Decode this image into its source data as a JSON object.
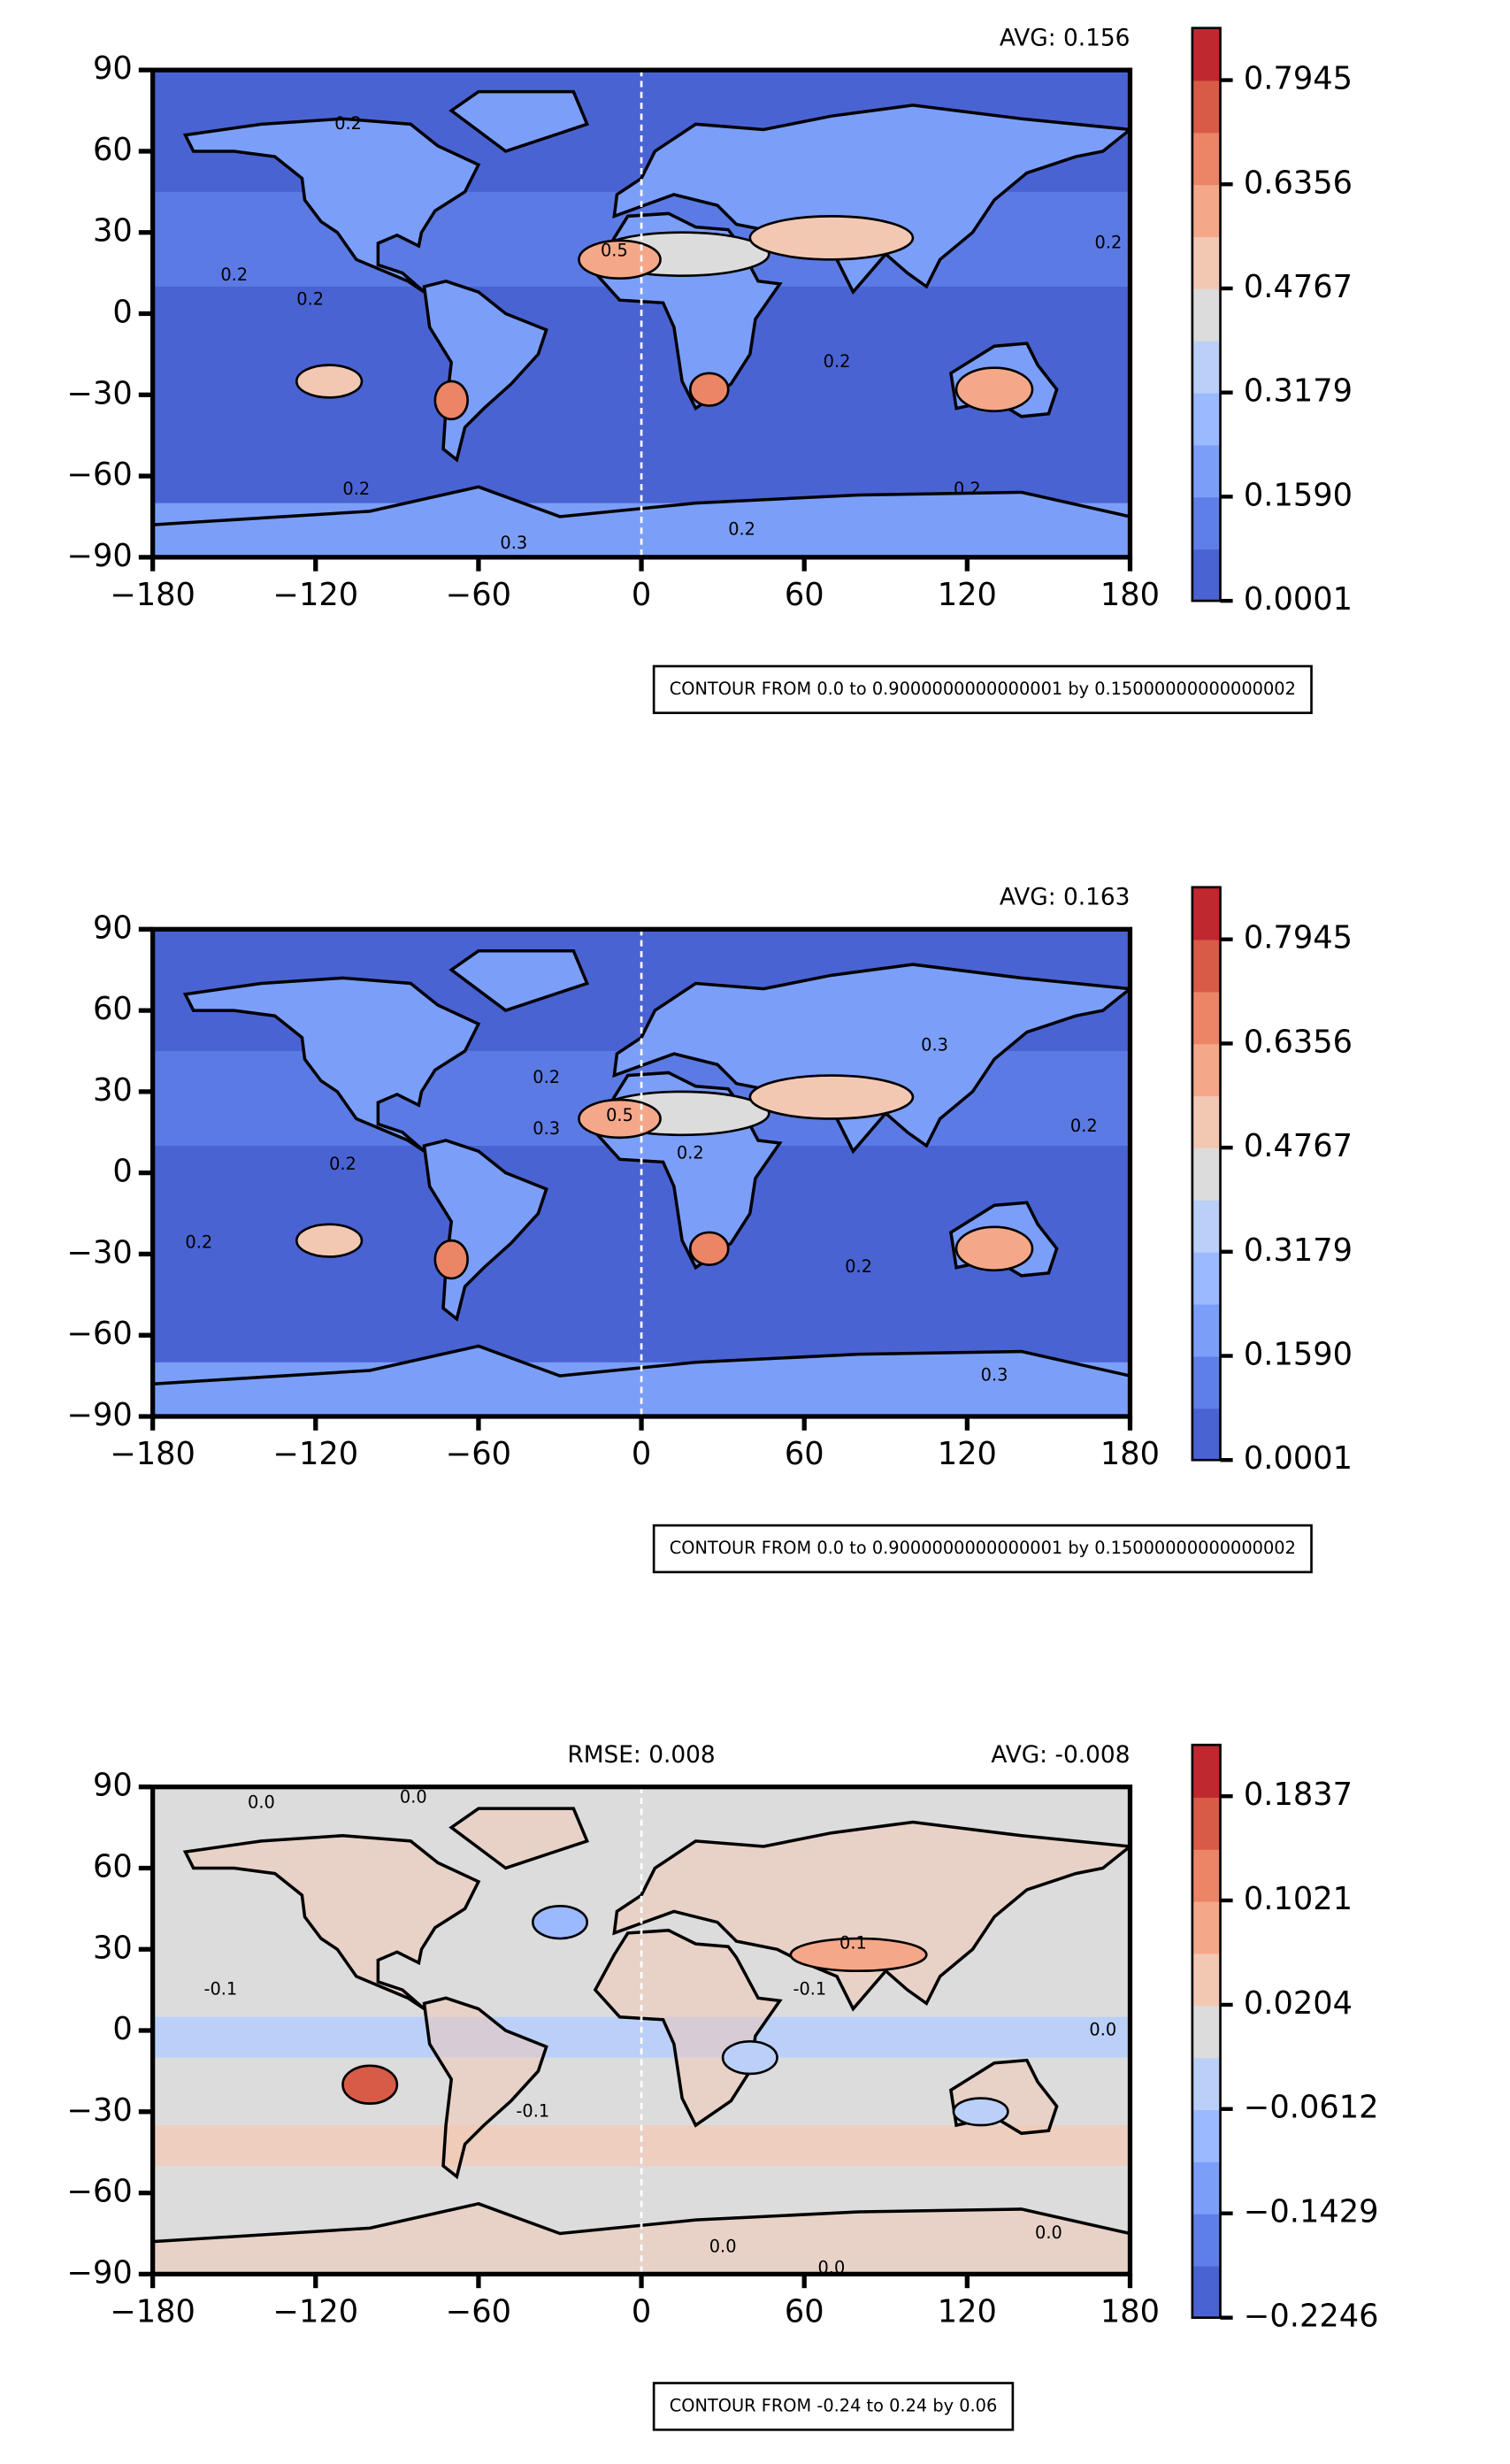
{
  "chart_data": [
    {
      "type": "contour",
      "title_right": "AVG: 0.156",
      "xlim": [
        -180,
        180
      ],
      "ylim": [
        -90,
        90
      ],
      "xticks": [
        {
          "value": -180,
          "label": "−180"
        },
        {
          "value": -120,
          "label": "−120"
        },
        {
          "value": -60,
          "label": "−60"
        },
        0,
        60,
        120,
        180
      ],
      "yticks": [
        {
          "value": -90,
          "label": "−90"
        },
        {
          "value": -60,
          "label": "−60"
        },
        {
          "value": -30,
          "label": "−30"
        },
        0,
        30,
        60,
        90
      ],
      "colorbar": {
        "clim": [
          0.0001,
          0.874
        ],
        "ticks": [
          0.0001,
          {
            "value": 0.159,
            "label": "0.1590"
          },
          0.3179,
          0.4767,
          0.6356,
          0.7945
        ],
        "colors": [
          "#4a63d3",
          "#5f7fe8",
          "#7b9ff9",
          "#9bb9fe",
          "#bad0f8",
          "#dcdcdc",
          "#f3c8b2",
          "#f5a889",
          "#ec8466",
          "#d85b48",
          "#c0282f"
        ]
      },
      "background": "#4a63d3",
      "contour_labels": [
        {
          "x": -150,
          "y": 14,
          "label": "0.2"
        },
        {
          "x": -122,
          "y": 5,
          "label": "0.2"
        },
        {
          "x": -108,
          "y": 70,
          "label": "0.2"
        },
        {
          "x": -105,
          "y": -65,
          "label": "0.2"
        },
        {
          "x": -47,
          "y": -85,
          "label": "0.3"
        },
        {
          "x": 37,
          "y": -80,
          "label": "0.2"
        },
        {
          "x": 72,
          "y": -18,
          "label": "0.2"
        },
        {
          "x": 120,
          "y": -65,
          "label": "0.2"
        },
        {
          "x": 172,
          "y": 26,
          "label": "0.2"
        },
        {
          "x": -10,
          "y": 23,
          "label": "0.5"
        }
      ],
      "note": "CONTOUR FROM 0.0 to 0.9000000000000001 by 0.15000000000000002"
    },
    {
      "type": "contour",
      "title_right": "AVG: 0.163",
      "xlim": [
        -180,
        180
      ],
      "ylim": [
        -90,
        90
      ],
      "xticks": [
        {
          "value": -180,
          "label": "−180"
        },
        {
          "value": -120,
          "label": "−120"
        },
        {
          "value": -60,
          "label": "−60"
        },
        0,
        60,
        120,
        180
      ],
      "yticks": [
        {
          "value": -90,
          "label": "−90"
        },
        {
          "value": -60,
          "label": "−60"
        },
        {
          "value": -30,
          "label": "−30"
        },
        0,
        30,
        60,
        90
      ],
      "colorbar": {
        "clim": [
          0.0001,
          0.874
        ],
        "ticks": [
          0.0001,
          {
            "value": 0.159,
            "label": "0.1590"
          },
          0.3179,
          0.4767,
          0.6356,
          0.7945
        ],
        "colors": [
          "#4a63d3",
          "#5f7fe8",
          "#7b9ff9",
          "#9bb9fe",
          "#bad0f8",
          "#dcdcdc",
          "#f3c8b2",
          "#f5a889",
          "#ec8466",
          "#d85b48",
          "#c0282f"
        ]
      },
      "background": "#4a63d3",
      "contour_labels": [
        {
          "x": -163,
          "y": -26,
          "label": "0.2"
        },
        {
          "x": -110,
          "y": 3,
          "label": "0.2"
        },
        {
          "x": -35,
          "y": 35,
          "label": "0.2"
        },
        {
          "x": -35,
          "y": 16,
          "label": "0.3"
        },
        {
          "x": -8,
          "y": 21,
          "label": "0.5"
        },
        {
          "x": 18,
          "y": 7,
          "label": "0.2"
        },
        {
          "x": 80,
          "y": -35,
          "label": "0.2"
        },
        {
          "x": 108,
          "y": 47,
          "label": "0.3"
        },
        {
          "x": 163,
          "y": 17,
          "label": "0.2"
        },
        {
          "x": 130,
          "y": -75,
          "label": "0.3"
        }
      ],
      "note": "CONTOUR FROM 0.0 to 0.9000000000000001 by 0.15000000000000002"
    },
    {
      "type": "contour",
      "title_center": "RMSE: 0.008",
      "title_right": "AVG: -0.008",
      "xlim": [
        -180,
        180
      ],
      "ylim": [
        -90,
        90
      ],
      "xticks": [
        {
          "value": -180,
          "label": "−180"
        },
        {
          "value": -120,
          "label": "−120"
        },
        {
          "value": -60,
          "label": "−60"
        },
        0,
        60,
        120,
        180
      ],
      "yticks": [
        {
          "value": -90,
          "label": "−90"
        },
        {
          "value": -60,
          "label": "−60"
        },
        {
          "value": -30,
          "label": "−30"
        },
        0,
        30,
        60,
        90
      ],
      "colorbar": {
        "clim": [
          -0.2246,
          0.2239
        ],
        "ticks": [
          {
            "value": -0.2246,
            "label": "−0.2246"
          },
          {
            "value": -0.1429,
            "label": "−0.1429"
          },
          {
            "value": -0.0612,
            "label": "−0.0612"
          },
          0.0204,
          0.1021,
          0.1837
        ],
        "colors": [
          "#4a63d3",
          "#5f7fe8",
          "#7b9ff9",
          "#9bb9fe",
          "#bad0f8",
          "#dcdcdc",
          "#f3c8b2",
          "#f5a889",
          "#ec8466",
          "#d85b48",
          "#c0282f"
        ]
      },
      "background": "#dcdcdc",
      "contour_labels": [
        {
          "x": -140,
          "y": 84,
          "label": "0.0"
        },
        {
          "x": -84,
          "y": 86,
          "label": "0.0"
        },
        {
          "x": -155,
          "y": 15,
          "label": "-0.1"
        },
        {
          "x": -40,
          "y": -30,
          "label": "-0.1"
        },
        {
          "x": 62,
          "y": 15,
          "label": "-0.1"
        },
        {
          "x": 78,
          "y": 32,
          "label": "0.1"
        },
        {
          "x": 170,
          "y": 0,
          "label": "0.0"
        },
        {
          "x": 30,
          "y": -80,
          "label": "0.0"
        },
        {
          "x": 70,
          "y": -88,
          "label": "0.0"
        },
        {
          "x": 150,
          "y": -75,
          "label": "0.0"
        }
      ],
      "note": "CONTOUR FROM -0.24 to 0.24 by 0.06"
    }
  ]
}
